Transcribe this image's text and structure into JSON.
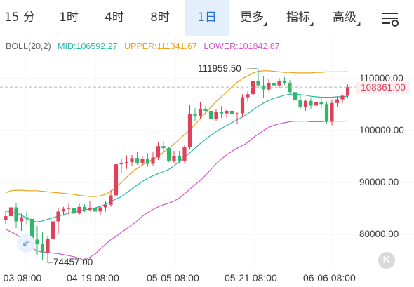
{
  "toolbar": {
    "tabs": [
      {
        "label": "15 分",
        "active": false
      },
      {
        "label": "1时",
        "active": false
      },
      {
        "label": "4时",
        "active": false
      },
      {
        "label": "8时",
        "active": false
      },
      {
        "label": "1日",
        "active": true
      },
      {
        "label": "更多",
        "active": false,
        "dropdown": true
      },
      {
        "label": "指标",
        "active": false,
        "dropdown": true
      },
      {
        "label": "高级",
        "active": false,
        "dropdown": true
      }
    ],
    "settings_icon": "sliders-settings-icon"
  },
  "legend": {
    "name": "BOLL(20,2)",
    "mid": "MID:106592.27",
    "upper": "UPPER:111341.67",
    "lower": "LOWER:101842.87"
  },
  "annotations": {
    "high": "111959.50",
    "low": "74457.00",
    "last_price": "108361.00"
  },
  "colors": {
    "up": "#e0405a",
    "down": "#2fb86a",
    "mid": "#2ab8a6",
    "upper": "#e9a21b",
    "lower": "#d857c9",
    "active_tab": "#2a6fd8"
  },
  "chart_data": {
    "type": "candlestick",
    "indicator": "BOLL(20,2)",
    "y_axis": {
      "ticks": [
        "110000.00",
        "100000.00",
        "90000.00",
        "80000.00"
      ],
      "range": [
        74000,
        114000
      ]
    },
    "x_axis": {
      "ticks": [
        "-03 08:00",
        "04-19 08:00",
        "05-05 08:00",
        "05-21 08:00",
        "06-06 08:00"
      ]
    },
    "candles": [
      [
        82800,
        84500,
        82000,
        83500
      ],
      [
        83500,
        85600,
        82900,
        85200
      ],
      [
        85200,
        86000,
        81200,
        82500
      ],
      [
        82500,
        84000,
        80700,
        83300
      ],
      [
        83300,
        84400,
        82000,
        83000
      ],
      [
        83000,
        83700,
        78500,
        79000
      ],
      [
        79000,
        81600,
        76100,
        78100
      ],
      [
        78100,
        80400,
        75000,
        76500
      ],
      [
        76500,
        79700,
        74457,
        79200
      ],
      [
        79200,
        82800,
        78500,
        82500
      ],
      [
        82500,
        85000,
        80000,
        84400
      ],
      [
        84400,
        85300,
        83600,
        84900
      ],
      [
        84900,
        86000,
        83700,
        85100
      ],
      [
        85100,
        85500,
        83800,
        84000
      ],
      [
        84000,
        86000,
        83800,
        85300
      ],
      [
        85300,
        85800,
        84300,
        84700
      ],
      [
        84700,
        86500,
        84400,
        85100
      ],
      [
        85100,
        85600,
        83900,
        84400
      ],
      [
        84400,
        85500,
        83700,
        85200
      ],
      [
        85200,
        86400,
        84400,
        85700
      ],
      [
        85700,
        88500,
        85300,
        87500
      ],
      [
        87500,
        93800,
        87000,
        93500
      ],
      [
        93500,
        94600,
        91800,
        93800
      ],
      [
        93800,
        95200,
        92600,
        93900
      ],
      [
        93900,
        95300,
        93200,
        94700
      ],
      [
        94700,
        95900,
        93400,
        93800
      ],
      [
        93800,
        95100,
        93100,
        94500
      ],
      [
        94500,
        95600,
        93000,
        93600
      ],
      [
        93600,
        95800,
        93200,
        94800
      ],
      [
        94800,
        97800,
        94300,
        97000
      ],
      [
        97000,
        97700,
        95900,
        96600
      ],
      [
        96600,
        96900,
        93900,
        94200
      ],
      [
        94200,
        96100,
        93700,
        95000
      ],
      [
        95000,
        96100,
        93700,
        94200
      ],
      [
        94200,
        97200,
        93600,
        96800
      ],
      [
        96800,
        104900,
        96300,
        103100
      ],
      [
        103100,
        104300,
        101800,
        102800
      ],
      [
        102800,
        105500,
        102200,
        104200
      ],
      [
        104200,
        104800,
        103100,
        103800
      ],
      [
        103800,
        104500,
        100800,
        102300
      ],
      [
        102300,
        104200,
        101900,
        103600
      ],
      [
        103600,
        104700,
        102400,
        103300
      ],
      [
        103300,
        104000,
        102500,
        103800
      ],
      [
        103800,
        104500,
        102800,
        103200
      ],
      [
        103200,
        103600,
        101300,
        103300
      ],
      [
        103300,
        107000,
        102600,
        106400
      ],
      [
        106400,
        107500,
        105600,
        107000
      ],
      [
        107000,
        110800,
        106700,
        109500
      ],
      [
        109500,
        111959.5,
        108200,
        108700
      ],
      [
        108700,
        110400,
        106300,
        107900
      ],
      [
        107900,
        110000,
        107500,
        109200
      ],
      [
        109200,
        109800,
        107200,
        108700
      ],
      [
        108700,
        110100,
        108100,
        109600
      ],
      [
        109600,
        110300,
        108800,
        109200
      ],
      [
        109200,
        109700,
        107000,
        107400
      ],
      [
        107400,
        108600,
        105600,
        105800
      ],
      [
        105800,
        107000,
        104200,
        104600
      ],
      [
        104600,
        106000,
        103800,
        105700
      ],
      [
        105700,
        106200,
        104200,
        104800
      ],
      [
        104800,
        106600,
        104400,
        105500
      ],
      [
        105500,
        106200,
        104300,
        105100
      ],
      [
        105100,
        105600,
        101300,
        101700
      ],
      [
        101700,
        106000,
        101000,
        105300
      ],
      [
        105300,
        106500,
        104600,
        106000
      ],
      [
        106000,
        107000,
        105200,
        106700
      ],
      [
        106700,
        108900,
        106200,
        108361
      ]
    ],
    "mid": [
      84500,
      84300,
      84100,
      83700,
      83100,
      82600,
      82400,
      82600,
      82900,
      83200,
      83500,
      83800,
      84100,
      84300,
      84500,
      84700,
      84900,
      85100,
      85400,
      85800,
      86300,
      86800,
      87300,
      88000,
      88800,
      89500,
      90200,
      90800,
      91300,
      91700,
      92100,
      92500,
      93200,
      94000,
      94800,
      95700,
      96600,
      97500,
      98300,
      99100,
      99800,
      100400,
      101000,
      101500,
      102100,
      102600,
      103200,
      104000,
      104700,
      105300,
      105800,
      106200,
      106500,
      106800,
      107000,
      107000,
      106900,
      106800,
      106600,
      106500,
      106400,
      106400,
      106400,
      106500,
      106500,
      106592
    ],
    "upper": [
      88000,
      88400,
      88500,
      88500,
      88400,
      88400,
      88400,
      88300,
      88200,
      88100,
      88000,
      87900,
      87800,
      87700,
      87500,
      87400,
      87300,
      87300,
      87400,
      87700,
      88300,
      89100,
      90000,
      91000,
      92000,
      92700,
      93400,
      93900,
      94500,
      95100,
      95800,
      96600,
      97400,
      98300,
      99200,
      100100,
      101200,
      102300,
      103400,
      104500,
      105600,
      106500,
      107400,
      108400,
      109300,
      110000,
      110500,
      111100,
      111400,
      111500,
      111500,
      111400,
      111300,
      111200,
      111200,
      111100,
      111100,
      111100,
      111100,
      111200,
      111200,
      111300,
      111300,
      111300,
      111300,
      111342
    ],
    "lower": [
      81000,
      80500,
      80000,
      79300,
      78300,
      77400,
      76800,
      76600,
      76500,
      76400,
      76300,
      76100,
      75900,
      75700,
      75400,
      75000,
      75600,
      76200,
      77200,
      78100,
      79000,
      79600,
      80400,
      81100,
      81800,
      82600,
      83500,
      84200,
      84800,
      85300,
      85700,
      86000,
      86400,
      87000,
      87800,
      88700,
      89600,
      90400,
      91400,
      92500,
      93600,
      94500,
      95300,
      96000,
      96600,
      97100,
      97700,
      98600,
      99300,
      100000,
      100600,
      101000,
      101300,
      101500,
      101700,
      101800,
      101800,
      101800,
      101700,
      101700,
      101700,
      101800,
      101800,
      101800,
      101800,
      101843
    ]
  }
}
